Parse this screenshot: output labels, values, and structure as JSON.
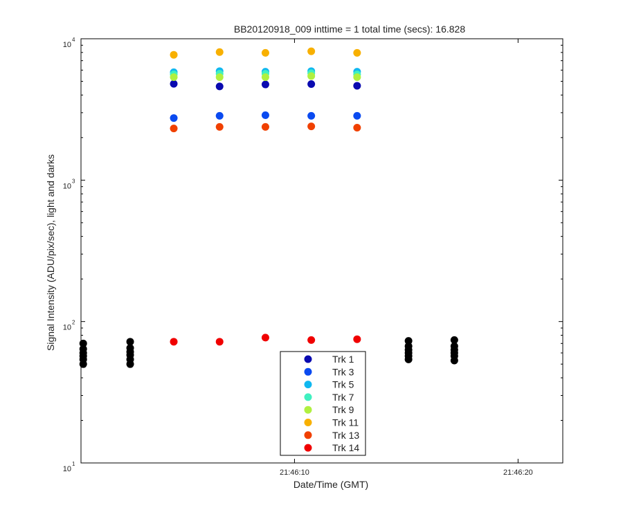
{
  "chart_data": {
    "type": "scatter",
    "title": "BB20120918_009 inttime = 1 total time (secs): 16.828",
    "xlabel": "Date/Time (GMT)",
    "ylabel": "Signal Intensity (ADU/pix/sec), light and darks",
    "y_scale": "log",
    "ylim": [
      10,
      10000
    ],
    "xlim_seconds": [
      0.45,
      22.0
    ],
    "x_ticks": [
      {
        "value": 10,
        "label": "21:46:10"
      },
      {
        "value": 20,
        "label": "21:46:20"
      }
    ],
    "y_ticks": [
      {
        "value": 10,
        "base": "10",
        "exp": "1"
      },
      {
        "value": 100,
        "base": "10",
        "exp": "2"
      },
      {
        "value": 1000,
        "base": "10",
        "exp": "3"
      },
      {
        "value": 10000,
        "base": "10",
        "exp": "4"
      }
    ],
    "legend_position": "bottom-center",
    "light_times": [
      4.6,
      6.65,
      8.7,
      10.75,
      12.8
    ],
    "series": [
      {
        "name": "Trk 1",
        "color": "#0a0ab0",
        "values": [
          4800,
          4600,
          4750,
          4780,
          4650
        ]
      },
      {
        "name": "Trk 3",
        "color": "#0a4af0",
        "values": [
          2750,
          2850,
          2880,
          2850,
          2850
        ]
      },
      {
        "name": "Trk 5",
        "color": "#10b8f0",
        "values": [
          5800,
          5900,
          5850,
          5900,
          5850
        ]
      },
      {
        "name": "Trk 7",
        "color": "#40f0c0",
        "values": [
          5600,
          5650,
          5650,
          5700,
          5600
        ]
      },
      {
        "name": "Trk 9",
        "color": "#b0f040",
        "values": [
          5350,
          5350,
          5350,
          5450,
          5350
        ]
      },
      {
        "name": "Trk 11",
        "color": "#f8b000",
        "values": [
          7700,
          8050,
          7950,
          8150,
          7950
        ]
      },
      {
        "name": "Trk 13",
        "color": "#f04000",
        "values": [
          2320,
          2380,
          2380,
          2400,
          2350
        ]
      },
      {
        "name": "Trk 14",
        "color": "#f00000",
        "values": [
          72,
          72,
          77,
          74,
          75
        ]
      }
    ],
    "darks": {
      "color": "#000000",
      "times": [
        0.55,
        2.65,
        15.1,
        17.15
      ],
      "values": [
        [
          50,
          54,
          57,
          60,
          64,
          70
        ],
        [
          50,
          54,
          58,
          61,
          65,
          72
        ],
        [
          54,
          57,
          60,
          63,
          67,
          73
        ],
        [
          53,
          57,
          60,
          63,
          67,
          74
        ]
      ]
    }
  }
}
